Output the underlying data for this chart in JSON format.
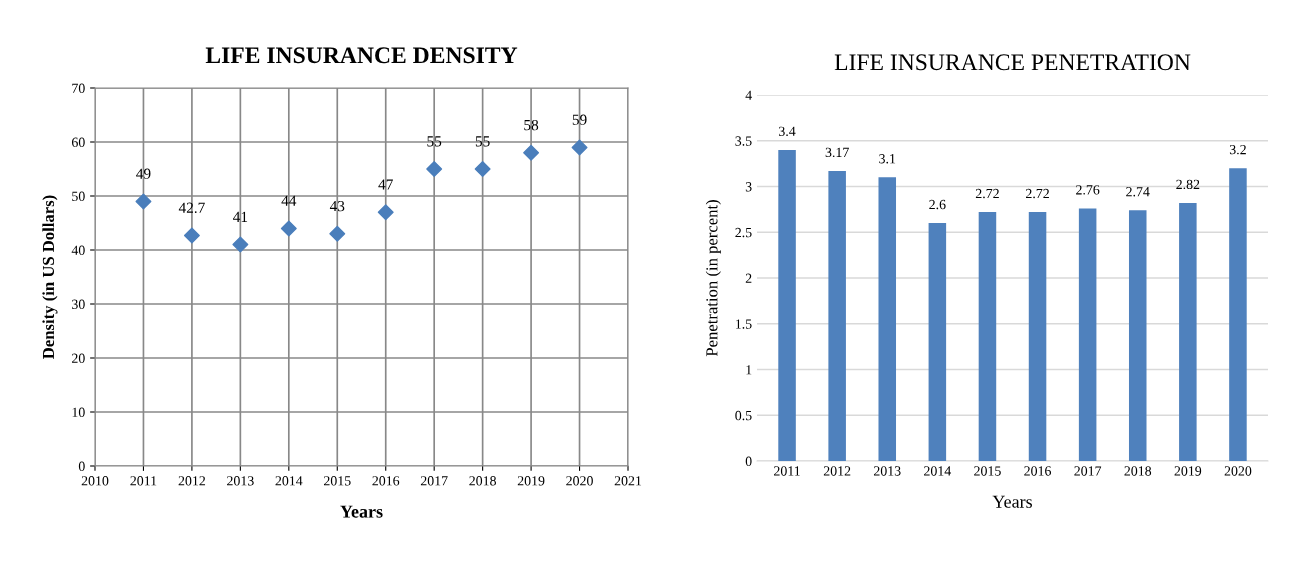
{
  "chart_data": [
    {
      "type": "scatter",
      "title": "LIFE INSURANCE DENSITY",
      "xlabel": "Years",
      "ylabel": "Density (in US Dollars)",
      "x": [
        2011,
        2012,
        2013,
        2014,
        2015,
        2016,
        2017,
        2018,
        2019,
        2020
      ],
      "series": [
        {
          "color": "#4a7ebb",
          "values": [
            49,
            42.7,
            41,
            44,
            43,
            47,
            55,
            55,
            58,
            59
          ]
        }
      ],
      "xlim": [
        2010,
        2021
      ],
      "xticks": [
        2010,
        2011,
        2012,
        2013,
        2014,
        2015,
        2016,
        2017,
        2018,
        2019,
        2020,
        2021
      ],
      "ylim": [
        0,
        70
      ],
      "yticks": [
        0,
        10,
        20,
        30,
        40,
        50,
        60,
        70
      ],
      "grid": true,
      "marker": "diamond",
      "data_labels": true
    },
    {
      "type": "bar",
      "title": "LIFE INSURANCE PENETRATION",
      "xlabel": "Years",
      "ylabel": "Penetration (in percent)",
      "categories": [
        "2011",
        "2012",
        "2013",
        "2014",
        "2015",
        "2016",
        "2017",
        "2018",
        "2019",
        "2020"
      ],
      "series": [
        {
          "color": "#4f81bd",
          "values": [
            3.4,
            3.17,
            3.1,
            2.6,
            2.72,
            2.72,
            2.76,
            2.74,
            2.82,
            3.2
          ]
        }
      ],
      "ylim": [
        0,
        4
      ],
      "yticks": [
        0,
        0.5,
        1,
        1.5,
        2,
        2.5,
        3,
        3.5,
        4
      ],
      "grid": "y",
      "data_labels": true
    }
  ]
}
